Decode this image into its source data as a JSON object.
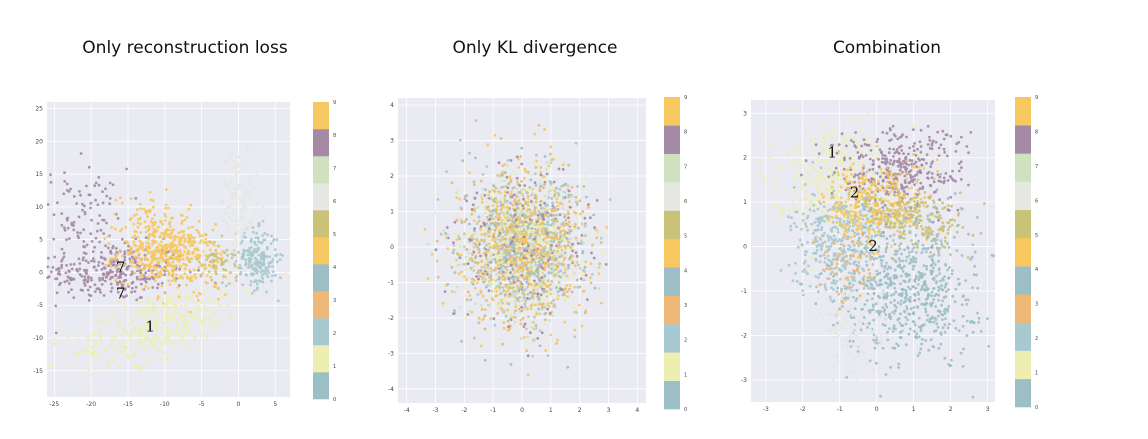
{
  "titles": [
    "Only reconstruction loss",
    "Only KL divergence",
    "Combination"
  ],
  "chart_data": [
    {
      "type": "scatter",
      "title": "Only reconstruction loss",
      "xlim": [
        -26,
        7
      ],
      "ylim": [
        -19,
        26
      ],
      "xticks": [
        -25,
        -20,
        -15,
        -10,
        -5,
        0,
        5
      ],
      "yticks": [
        -15,
        -10,
        -5,
        0,
        5,
        10,
        15,
        20,
        25
      ],
      "colorbar": {
        "min": 0,
        "max": 9,
        "ticks": [
          "0",
          "1",
          "2",
          "3",
          "4",
          "5",
          "6",
          "7",
          "8",
          "9"
        ]
      },
      "grid": true,
      "clusters": [
        {
          "label": 7,
          "cx": -17,
          "cy": 0,
          "sx": 5,
          "sy": 2.2,
          "n": 300
        },
        {
          "label": 7,
          "cx": -21,
          "cy": 8,
          "sx": 3,
          "sy": 4,
          "n": 110
        },
        {
          "label": 4,
          "cx": -10,
          "cy": 3,
          "sx": 3.2,
          "sy": 2.2,
          "n": 420
        },
        {
          "label": 4,
          "cx": -12,
          "cy": 9,
          "sx": 2.5,
          "sy": 2,
          "n": 60
        },
        {
          "label": 1,
          "cx": -11,
          "cy": -8,
          "sx": 6,
          "sy": 2.4,
          "n": 420,
          "rot": 0.38
        },
        {
          "label": 2,
          "cx": 2.5,
          "cy": 2,
          "sx": 1.4,
          "sy": 2.2,
          "n": 220
        },
        {
          "label": 6,
          "cx": 0,
          "cy": 10,
          "sx": 1.3,
          "sy": 5,
          "n": 150
        },
        {
          "label": 5,
          "cx": -3,
          "cy": 2,
          "sx": 1.2,
          "sy": 1.5,
          "n": 60
        },
        {
          "label": 9,
          "cx": -7,
          "cy": 1,
          "sx": 3,
          "sy": 3,
          "n": 80
        }
      ],
      "annotations": [
        {
          "text": "7",
          "x": -16,
          "y": 0
        },
        {
          "text": "7",
          "x": -16,
          "y": -4
        },
        {
          "text": "1",
          "x": -12,
          "y": -9
        }
      ]
    },
    {
      "type": "scatter",
      "title": "Only KL divergence",
      "xlim": [
        -4.3,
        4.3
      ],
      "ylim": [
        -4.4,
        4.2
      ],
      "xticks": [
        -4,
        -3,
        -2,
        -1,
        0,
        1,
        2,
        3,
        4
      ],
      "yticks": [
        -4,
        -3,
        -2,
        -1,
        0,
        1,
        2,
        3,
        4
      ],
      "colorbar": {
        "min": 0,
        "max": 9,
        "ticks": [
          "0",
          "1",
          "2",
          "3",
          "4",
          "5",
          "6",
          "7",
          "8",
          "9"
        ]
      },
      "grid": true,
      "clusters": [
        {
          "label": "mixed",
          "cx": 0,
          "cy": 0,
          "sx": 1.05,
          "sy": 1.05,
          "n": 2600
        }
      ],
      "annotations": []
    },
    {
      "type": "scatter",
      "title": "Combination",
      "xlim": [
        -3.4,
        3.2
      ],
      "ylim": [
        -3.5,
        3.3
      ],
      "xticks": [
        -3,
        -2,
        -1,
        0,
        1,
        2,
        3
      ],
      "yticks": [
        -3,
        -2,
        -1,
        0,
        1,
        2,
        3
      ],
      "colorbar": {
        "min": 0,
        "max": 9,
        "ticks": [
          "0",
          "1",
          "2",
          "3",
          "4",
          "5",
          "6",
          "7",
          "8",
          "9"
        ]
      },
      "grid": true,
      "clusters": [
        {
          "label": 1,
          "cx": -1.2,
          "cy": 1.6,
          "sx": 0.8,
          "sy": 0.6,
          "n": 380
        },
        {
          "label": 7,
          "cx": 0.6,
          "cy": 1.7,
          "sx": 0.9,
          "sy": 0.5,
          "n": 360
        },
        {
          "label": 4,
          "cx": 0.0,
          "cy": 1.0,
          "sx": 0.7,
          "sy": 0.45,
          "n": 300
        },
        {
          "label": 5,
          "cx": 1.1,
          "cy": 0.6,
          "sx": 0.7,
          "sy": 0.35,
          "n": 220
        },
        {
          "label": 2,
          "cx": -1.0,
          "cy": 0.0,
          "sx": 0.6,
          "sy": 0.6,
          "n": 380
        },
        {
          "label": 0,
          "cx": 0.9,
          "cy": -0.9,
          "sx": 0.9,
          "sy": 0.8,
          "n": 650
        },
        {
          "label": 6,
          "cx": -0.6,
          "cy": -1.8,
          "sx": 0.5,
          "sy": 0.6,
          "n": 180
        },
        {
          "label": 3,
          "cx": -0.7,
          "cy": -0.5,
          "sx": 0.4,
          "sy": 0.4,
          "n": 60
        },
        {
          "label": 9,
          "cx": -0.4,
          "cy": 0.6,
          "sx": 0.4,
          "sy": 0.3,
          "n": 60
        }
      ],
      "annotations": [
        {
          "text": "1",
          "x": -1.2,
          "y": 2.0
        },
        {
          "text": "2",
          "x": -0.6,
          "y": 1.1
        },
        {
          "text": "2",
          "x": -0.1,
          "y": -0.1
        }
      ]
    }
  ],
  "palette": [
    "#9bbfc6",
    "#eef0b4",
    "#a9c8cf",
    "#efb877",
    "#9bbfc6",
    "#f6c85f",
    "#d3c77e",
    "#dfe2dc",
    "#cde0bd",
    "#a88aa8",
    "#f6c85f"
  ],
  "label_colors": {
    "0": "#9cbfc5",
    "1": "#ecefb1",
    "2": "#a8c9d0",
    "3": "#efb877",
    "4": "#f6c85f",
    "5": "#cbc27a",
    "6": "#e4e8e1",
    "7": "#a48aa7",
    "8": "#cfe1be",
    "9": "#f6c85f"
  },
  "colorbar_colors": [
    "#9cbfc5",
    "#ecefb1",
    "#a8c9d0",
    "#efb877",
    "#9cbfc5",
    "#f6c85f",
    "#cbc27a",
    "#e6e9e3",
    "#cfe1be",
    "#a48aa7",
    "#f6c85f"
  ]
}
